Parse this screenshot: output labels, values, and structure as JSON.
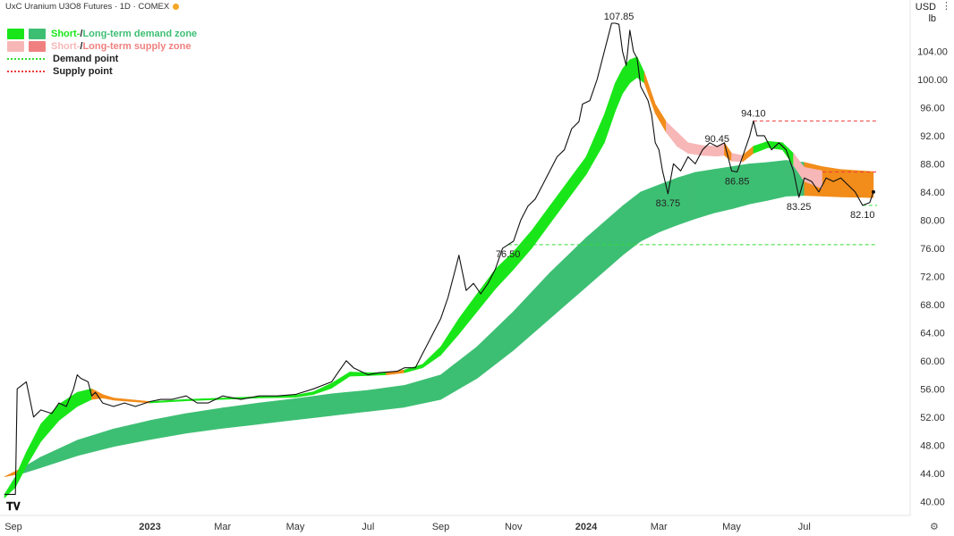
{
  "header": {
    "title": "UxC Uranium U3O8 Futures · 1D · COMEX"
  },
  "units": {
    "currency": "USD",
    "weight": "lb"
  },
  "legend": {
    "demand_short": "Short-",
    "demand_slash": " / ",
    "demand_long": "Long-term demand zone",
    "supply_short": "Short-",
    "supply_slash": " / ",
    "supply_long": "Long-term supply zone",
    "demand_point": "Demand point",
    "supply_point": "Supply point"
  },
  "colors": {
    "short_demand": "#19e619",
    "long_demand": "#3dbf73",
    "short_supply": "#f7b7b7",
    "long_supply": "#f08080",
    "neutral_zone": "#f28c1a",
    "price_line": "#111111",
    "demand_line": "#33dd33",
    "supply_line": "#ee3b3b",
    "axis_text": "#333333",
    "grid": "#f0f0f0"
  },
  "chart_data": {
    "type": "line",
    "title": "UxC Uranium U3O8 Futures · 1D · COMEX",
    "y_axis": {
      "unit": "USD / lb",
      "range": [
        38,
        111.3
      ],
      "ticks": [
        40,
        44,
        48,
        52,
        56,
        60,
        64,
        68,
        72,
        76,
        80,
        84,
        88,
        92,
        96,
        100,
        104
      ]
    },
    "x_axis": {
      "ticks": [
        {
          "label": "Sep",
          "x": 0
        },
        {
          "label": "2023",
          "x": 4
        },
        {
          "label": "Mar",
          "x": 6
        },
        {
          "label": "May",
          "x": 8
        },
        {
          "label": "Jul",
          "x": 10
        },
        {
          "label": "Sep",
          "x": 12
        },
        {
          "label": "Nov",
          "x": 14
        },
        {
          "label": "2024",
          "x": 16
        },
        {
          "label": "Mar",
          "x": 18
        },
        {
          "label": "May",
          "x": 20
        },
        {
          "label": "Jul",
          "x": 22
        }
      ],
      "range": [
        0,
        24
      ]
    },
    "price_series": {
      "name": "Price",
      "points": [
        [
          0,
          41
        ],
        [
          0.3,
          41
        ],
        [
          0.35,
          56
        ],
        [
          0.6,
          57
        ],
        [
          0.8,
          52
        ],
        [
          1.0,
          53
        ],
        [
          1.3,
          52.5
        ],
        [
          1.5,
          54
        ],
        [
          1.7,
          53.5
        ],
        [
          1.9,
          56
        ],
        [
          2.0,
          58
        ],
        [
          2.1,
          57.5
        ],
        [
          2.3,
          57
        ],
        [
          2.4,
          55
        ],
        [
          2.5,
          55.5
        ],
        [
          2.7,
          54
        ],
        [
          3.0,
          53.5
        ],
        [
          3.3,
          54
        ],
        [
          3.6,
          53.5
        ],
        [
          4.0,
          54.2
        ],
        [
          4.3,
          54.5
        ],
        [
          4.6,
          54.5
        ],
        [
          5.0,
          55
        ],
        [
          5.3,
          54
        ],
        [
          5.6,
          54
        ],
        [
          6.0,
          55
        ],
        [
          6.5,
          54.5
        ],
        [
          7.0,
          55
        ],
        [
          7.5,
          55
        ],
        [
          8.0,
          55.2
        ],
        [
          8.5,
          56
        ],
        [
          9.0,
          57
        ],
        [
          9.2,
          58.5
        ],
        [
          9.4,
          60
        ],
        [
          9.6,
          59
        ],
        [
          9.8,
          58.5
        ],
        [
          10.0,
          58
        ],
        [
          10.3,
          58.3
        ],
        [
          10.8,
          58.5
        ],
        [
          11.0,
          59
        ],
        [
          11.3,
          59
        ],
        [
          11.5,
          61
        ],
        [
          11.8,
          64
        ],
        [
          12.0,
          66
        ],
        [
          12.2,
          69
        ],
        [
          12.4,
          73
        ],
        [
          12.5,
          75
        ],
        [
          12.7,
          70
        ],
        [
          12.9,
          71
        ],
        [
          13.1,
          69.5
        ],
        [
          13.3,
          71
        ],
        [
          13.5,
          73
        ],
        [
          13.7,
          76
        ],
        [
          13.85,
          76.5
        ],
        [
          14.0,
          77
        ],
        [
          14.2,
          80
        ],
        [
          14.4,
          82
        ],
        [
          14.6,
          83
        ],
        [
          14.8,
          85
        ],
        [
          15.0,
          87
        ],
        [
          15.2,
          89
        ],
        [
          15.4,
          90
        ],
        [
          15.6,
          93
        ],
        [
          15.8,
          94
        ],
        [
          15.9,
          96.5
        ],
        [
          16.1,
          97
        ],
        [
          16.3,
          100
        ],
        [
          16.5,
          104
        ],
        [
          16.7,
          108
        ],
        [
          16.8,
          108
        ],
        [
          16.9,
          107.85
        ],
        [
          17.0,
          104
        ],
        [
          17.1,
          102
        ],
        [
          17.2,
          107
        ],
        [
          17.3,
          104
        ],
        [
          17.4,
          103
        ],
        [
          17.5,
          99
        ],
        [
          17.7,
          97
        ],
        [
          17.8,
          95
        ],
        [
          17.9,
          91
        ],
        [
          18.0,
          90
        ],
        [
          18.1,
          87
        ],
        [
          18.25,
          83.75
        ],
        [
          18.4,
          88
        ],
        [
          18.6,
          87
        ],
        [
          18.8,
          89
        ],
        [
          19.0,
          88
        ],
        [
          19.2,
          90
        ],
        [
          19.4,
          91
        ],
        [
          19.6,
          90.45
        ],
        [
          19.8,
          91
        ],
        [
          20.0,
          87
        ],
        [
          20.15,
          86.85
        ],
        [
          20.3,
          89
        ],
        [
          20.5,
          92
        ],
        [
          20.6,
          94.1
        ],
        [
          20.7,
          92
        ],
        [
          20.9,
          92
        ],
        [
          21.1,
          90
        ],
        [
          21.3,
          91
        ],
        [
          21.5,
          90
        ],
        [
          21.7,
          87
        ],
        [
          21.85,
          83.25
        ],
        [
          22.0,
          86
        ],
        [
          22.2,
          85.5
        ],
        [
          22.4,
          84
        ],
        [
          22.6,
          86
        ],
        [
          22.8,
          85.5
        ],
        [
          23.0,
          86
        ],
        [
          23.2,
          85
        ],
        [
          23.4,
          84
        ],
        [
          23.6,
          82.1
        ],
        [
          23.8,
          82.5
        ],
        [
          23.9,
          84
        ]
      ]
    },
    "short_term_zone": {
      "upper": [
        [
          0,
          41
        ],
        [
          0.3,
          43.5
        ],
        [
          0.6,
          47
        ],
        [
          1.0,
          51
        ],
        [
          1.5,
          53.8
        ],
        [
          2.0,
          55.5
        ],
        [
          2.4,
          56
        ],
        [
          2.7,
          55.2
        ],
        [
          3.0,
          54.7
        ],
        [
          4.0,
          54.2
        ],
        [
          5.0,
          54.5
        ],
        [
          6.0,
          54.7
        ],
        [
          7.0,
          54.9
        ],
        [
          8.0,
          55.1
        ],
        [
          8.5,
          55.6
        ],
        [
          9.0,
          56.8
        ],
        [
          9.5,
          58.4
        ],
        [
          10.0,
          58.3
        ],
        [
          10.5,
          58.3
        ],
        [
          11.0,
          58.7
        ],
        [
          11.5,
          59.5
        ],
        [
          12.0,
          62
        ],
        [
          12.5,
          66
        ],
        [
          13.0,
          69.5
        ],
        [
          13.5,
          73
        ],
        [
          14.0,
          75.5
        ],
        [
          14.5,
          78.5
        ],
        [
          15.0,
          82
        ],
        [
          15.5,
          85.5
        ],
        [
          16.0,
          89
        ],
        [
          16.5,
          95
        ],
        [
          16.8,
          99.5
        ],
        [
          17.0,
          101.5
        ],
        [
          17.2,
          102.8
        ],
        [
          17.4,
          103.2
        ],
        [
          17.6,
          101
        ],
        [
          17.9,
          96.5
        ],
        [
          18.2,
          94
        ],
        [
          18.5,
          92.5
        ],
        [
          18.8,
          91
        ],
        [
          19.2,
          90.6
        ],
        [
          19.6,
          90.5
        ],
        [
          19.8,
          91
        ],
        [
          20.0,
          89.5
        ],
        [
          20.3,
          89.2
        ],
        [
          20.6,
          90.5
        ],
        [
          21.0,
          91.2
        ],
        [
          21.4,
          91
        ],
        [
          21.7,
          89.5
        ],
        [
          22.0,
          87.5
        ],
        [
          22.5,
          87
        ],
        [
          23.0,
          86.7
        ],
        [
          23.4,
          86.5
        ],
        [
          23.8,
          86.2
        ]
      ],
      "lower": [
        [
          0,
          40.5
        ],
        [
          0.3,
          42
        ],
        [
          0.6,
          45
        ],
        [
          1.0,
          48.5
        ],
        [
          1.5,
          51.5
        ],
        [
          2.0,
          53.5
        ],
        [
          2.4,
          54.5
        ],
        [
          2.7,
          54.7
        ],
        [
          3.0,
          54.4
        ],
        [
          4.0,
          54
        ],
        [
          5.0,
          54.3
        ],
        [
          6.0,
          54.5
        ],
        [
          7.0,
          54.7
        ],
        [
          8.0,
          54.8
        ],
        [
          8.5,
          55.2
        ],
        [
          9.0,
          56.1
        ],
        [
          9.5,
          57.8
        ],
        [
          10.0,
          57.9
        ],
        [
          10.5,
          58
        ],
        [
          11.0,
          58.3
        ],
        [
          11.5,
          59
        ],
        [
          12.0,
          60.8
        ],
        [
          12.5,
          63.8
        ],
        [
          13.0,
          67
        ],
        [
          13.5,
          70.2
        ],
        [
          14.0,
          73
        ],
        [
          14.5,
          76
        ],
        [
          15.0,
          79.5
        ],
        [
          15.5,
          83
        ],
        [
          16.0,
          86.5
        ],
        [
          16.5,
          91
        ],
        [
          16.8,
          95.5
        ],
        [
          17.0,
          98
        ],
        [
          17.2,
          99.5
        ],
        [
          17.4,
          100.3
        ],
        [
          17.6,
          99.5
        ],
        [
          17.9,
          95.2
        ],
        [
          18.2,
          92.5
        ],
        [
          18.5,
          90.5
        ],
        [
          18.8,
          89.5
        ],
        [
          19.2,
          89.2
        ],
        [
          19.6,
          89.1
        ],
        [
          19.8,
          89.2
        ],
        [
          20.0,
          88.4
        ],
        [
          20.3,
          88.3
        ],
        [
          20.6,
          89.5
        ],
        [
          21.0,
          90.3
        ],
        [
          21.4,
          90
        ],
        [
          21.7,
          87.8
        ],
        [
          22.0,
          85.5
        ],
        [
          22.5,
          84.5
        ],
        [
          23.0,
          83.9
        ],
        [
          23.4,
          83.5
        ],
        [
          23.8,
          83.2
        ]
      ],
      "state": [
        "demand",
        "demand",
        "demand",
        "demand",
        "demand",
        "demand",
        "neutral",
        "neutral",
        "neutral",
        "demand",
        "demand",
        "demand",
        "demand",
        "demand",
        "demand",
        "demand",
        "demand",
        "demand",
        "neutral",
        "demand",
        "demand",
        "demand",
        "demand",
        "demand",
        "demand",
        "demand",
        "demand",
        "demand",
        "demand",
        "demand",
        "demand",
        "demand",
        "demand",
        "demand",
        "demand",
        "neutral",
        "neutral",
        "supply",
        "supply",
        "supply",
        "supply",
        "supply",
        "neutral",
        "supply",
        "neutral",
        "demand",
        "demand",
        "demand",
        "supply",
        "supply",
        "neutral",
        "neutral",
        "neutral"
      ]
    },
    "long_term_zone": {
      "upper": [
        [
          0,
          43.5
        ],
        [
          0.5,
          44.8
        ],
        [
          1,
          46.3
        ],
        [
          2,
          48.7
        ],
        [
          3,
          50.3
        ],
        [
          4,
          51.5
        ],
        [
          5,
          52.5
        ],
        [
          6,
          53.3
        ],
        [
          7,
          54
        ],
        [
          8,
          54.6
        ],
        [
          9,
          55.3
        ],
        [
          10,
          55.8
        ],
        [
          11,
          56.5
        ],
        [
          12,
          58
        ],
        [
          13,
          62
        ],
        [
          14,
          67
        ],
        [
          15,
          72.5
        ],
        [
          16,
          77.5
        ],
        [
          17,
          82
        ],
        [
          17.5,
          84
        ],
        [
          18,
          85
        ],
        [
          18.5,
          86
        ],
        [
          19,
          86.8
        ],
        [
          19.5,
          87.2
        ],
        [
          20,
          87.6
        ],
        [
          20.5,
          88
        ],
        [
          21,
          88.2
        ],
        [
          21.5,
          88.5
        ],
        [
          22,
          88.2
        ],
        [
          22.5,
          87.6
        ],
        [
          23,
          87.2
        ],
        [
          23.9,
          86.9
        ]
      ],
      "lower": [
        [
          0,
          43.5
        ],
        [
          0.5,
          44
        ],
        [
          1,
          44.8
        ],
        [
          2,
          46.5
        ],
        [
          3,
          47.8
        ],
        [
          4,
          48.8
        ],
        [
          5,
          49.7
        ],
        [
          6,
          50.4
        ],
        [
          7,
          51
        ],
        [
          8,
          51.6
        ],
        [
          9,
          52.2
        ],
        [
          10,
          52.8
        ],
        [
          11,
          53.4
        ],
        [
          12,
          54.5
        ],
        [
          13,
          57.5
        ],
        [
          14,
          61.5
        ],
        [
          15,
          66
        ],
        [
          16,
          70.5
        ],
        [
          17,
          75
        ],
        [
          17.5,
          77
        ],
        [
          18,
          78.3
        ],
        [
          18.5,
          79.3
        ],
        [
          19,
          80.2
        ],
        [
          19.5,
          81
        ],
        [
          20,
          81.6
        ],
        [
          20.5,
          82.3
        ],
        [
          21,
          82.8
        ],
        [
          21.5,
          83.4
        ],
        [
          22,
          83.5
        ],
        [
          22.5,
          83.4
        ],
        [
          23,
          83.3
        ],
        [
          23.9,
          83.2
        ]
      ],
      "state": [
        "neutral",
        "demand",
        "demand",
        "demand",
        "demand",
        "demand",
        "demand",
        "demand",
        "demand",
        "demand",
        "demand",
        "demand",
        "demand",
        "demand",
        "demand",
        "demand",
        "demand",
        "demand",
        "demand",
        "demand",
        "demand",
        "demand",
        "demand",
        "demand",
        "demand",
        "demand",
        "demand",
        "demand",
        "neutral",
        "neutral",
        "neutral",
        "neutral"
      ]
    },
    "demand_points": [
      {
        "value": 82.1,
        "x_range": [
          23.6,
          24.0
        ]
      },
      {
        "value": 76.5,
        "x_range": [
          13.85,
          24.0
        ]
      }
    ],
    "supply_points": [
      {
        "value": 94.1,
        "x_range": [
          20.6,
          24.0
        ]
      },
      {
        "value": 86.85,
        "x_range": [
          22.5,
          24.0
        ]
      }
    ],
    "annotations": [
      {
        "text": "107.85",
        "x": 16.9,
        "y": 107.85,
        "pos": "above"
      },
      {
        "text": "94.10",
        "x": 20.6,
        "y": 94.1,
        "pos": "above"
      },
      {
        "text": "90.45",
        "x": 19.6,
        "y": 90.45,
        "pos": "above"
      },
      {
        "text": "86.85",
        "x": 20.15,
        "y": 86.85,
        "pos": "below"
      },
      {
        "text": "83.75",
        "x": 18.25,
        "y": 83.75,
        "pos": "below"
      },
      {
        "text": "83.25",
        "x": 21.85,
        "y": 83.25,
        "pos": "below"
      },
      {
        "text": "82.10",
        "x": 23.6,
        "y": 82.1,
        "pos": "below"
      },
      {
        "text": "76.50",
        "x": 13.85,
        "y": 76.5,
        "pos": "below"
      }
    ],
    "grid": false,
    "legend_position": "top-left"
  }
}
